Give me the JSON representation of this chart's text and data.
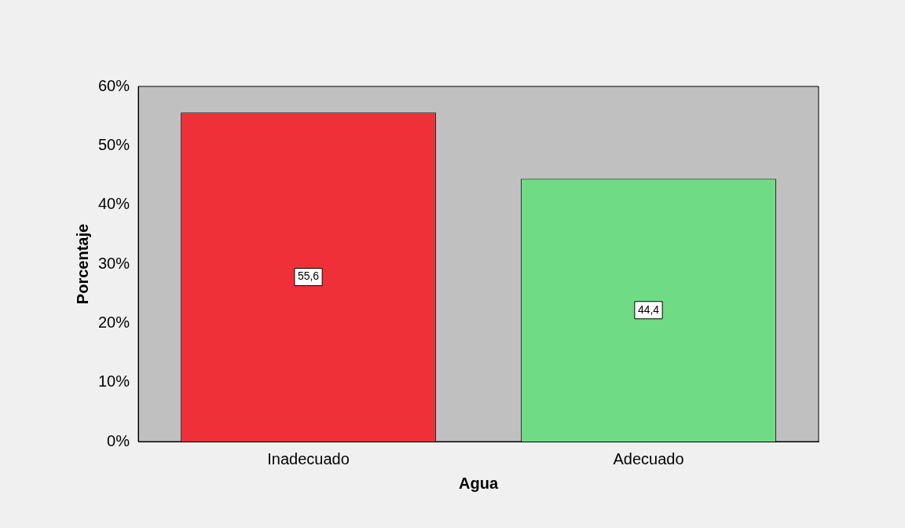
{
  "chart_data": {
    "type": "bar",
    "xlabel": "Agua",
    "ylabel": "Porcentaje",
    "categories": [
      "Inadecuado",
      "Adecuado"
    ],
    "values": [
      55.6,
      44.4
    ],
    "colors": [
      "#ef3038",
      "#6fdb85"
    ],
    "value_labels": [
      "55,6",
      "44,4"
    ],
    "ylim": [
      0,
      60
    ],
    "yticks": [
      {
        "value": 0,
        "label": "0%"
      },
      {
        "value": 10,
        "label": "10%"
      },
      {
        "value": 20,
        "label": "20%"
      },
      {
        "value": 30,
        "label": "30%"
      },
      {
        "value": 40,
        "label": "40%"
      },
      {
        "value": 50,
        "label": "50%"
      },
      {
        "value": 60,
        "label": "60%"
      }
    ],
    "grid": false,
    "legend": false
  }
}
